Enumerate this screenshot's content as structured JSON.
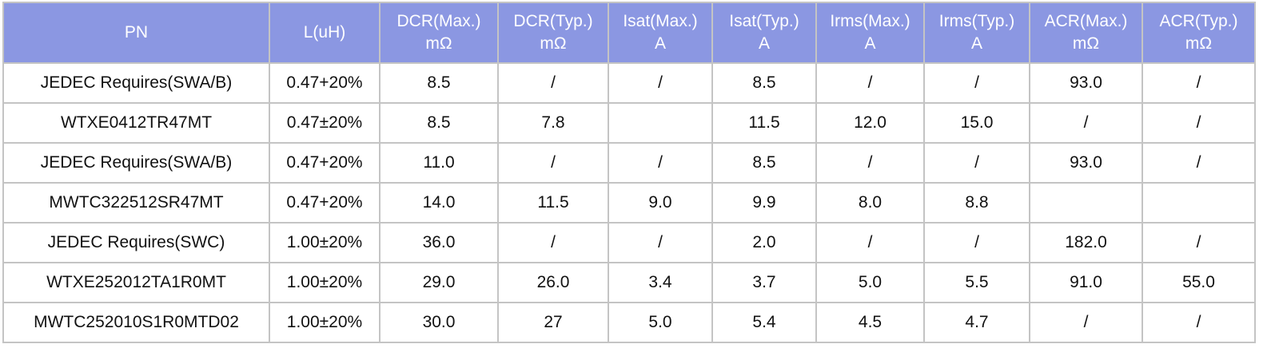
{
  "table": {
    "header": [
      [
        "PN"
      ],
      [
        "L(uH)"
      ],
      [
        "DCR(Max.)",
        "mΩ"
      ],
      [
        "DCR(Typ.)",
        "mΩ"
      ],
      [
        "Isat(Max.)",
        "A"
      ],
      [
        "Isat(Typ.)",
        "A"
      ],
      [
        "Irms(Max.)",
        "A"
      ],
      [
        "Irms(Typ.)",
        "A"
      ],
      [
        "ACR(Max.)",
        "mΩ"
      ],
      [
        "ACR(Typ.)",
        "mΩ"
      ]
    ],
    "rows": [
      [
        "JEDEC Requires(SWA/B)",
        "0.47+20%",
        "8.5",
        "/",
        "/",
        "8.5",
        "/",
        "/",
        "93.0",
        "/"
      ],
      [
        "WTXE0412TR47MT",
        "0.47±20%",
        "8.5",
        "7.8",
        null,
        "11.5",
        "12.0",
        "15.0",
        "/",
        "/"
      ],
      [
        "JEDEC Requires(SWA/B)",
        "0.47+20%",
        "11.0",
        "/",
        "/",
        "8.5",
        "/",
        "/",
        "93.0",
        "/"
      ],
      [
        "MWTC322512SR47MT",
        "0.47+20%",
        "14.0",
        "11.5",
        "9.0",
        "9.9",
        "8.0",
        "8.8",
        null,
        null
      ],
      [
        "JEDEC Requires(SWC)",
        "1.00±20%",
        "36.0",
        "/",
        "/",
        "2.0",
        "/",
        "/",
        "182.0",
        "/"
      ],
      [
        "WTXE252012TA1R0MT",
        "1.00±20%",
        "29.0",
        "26.0",
        "3.4",
        "3.7",
        "5.0",
        "5.5",
        "91.0",
        "55.0"
      ],
      [
        "MWTC252010S1R0MTD02",
        "1.00±20%",
        "30.0",
        "27",
        "5.0",
        "5.4",
        "4.5",
        "4.7",
        "/",
        "/"
      ]
    ]
  }
}
